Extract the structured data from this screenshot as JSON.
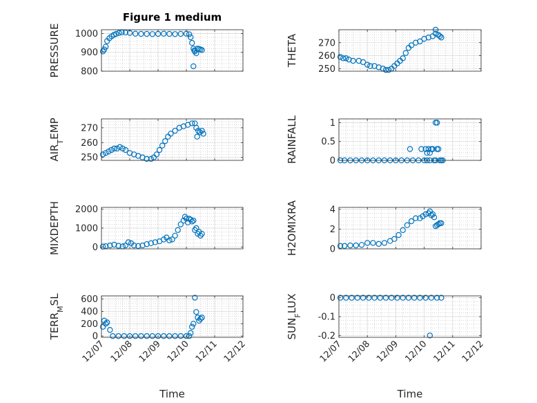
{
  "figure": {
    "title": "Figure 1 medium"
  },
  "colors": {
    "marker": "#0072BD",
    "axis": "#262626",
    "grid": "#b8b8b8"
  },
  "chart_data": [
    {
      "type": "scatter",
      "ylabel": "PRESSURE",
      "xlabel": "",
      "title": "Figure 1 medium",
      "xlim": [
        0,
        5
      ],
      "ylim": [
        800,
        1020
      ],
      "yticks": [
        800,
        900,
        1000
      ],
      "yticklabels": [
        "800",
        "900",
        "1000"
      ],
      "xticklabels_shown": false,
      "points": [
        [
          0.05,
          905
        ],
        [
          0.1,
          915
        ],
        [
          0.15,
          930
        ],
        [
          0.2,
          960
        ],
        [
          0.28,
          975
        ],
        [
          0.36,
          985
        ],
        [
          0.44,
          993
        ],
        [
          0.52,
          998
        ],
        [
          0.62,
          1003
        ],
        [
          0.72,
          1006
        ],
        [
          0.85,
          1005
        ],
        [
          1.0,
          1003
        ],
        [
          1.2,
          999
        ],
        [
          1.4,
          998
        ],
        [
          1.6,
          998
        ],
        [
          1.8,
          997
        ],
        [
          2.0,
          998
        ],
        [
          2.2,
          999
        ],
        [
          2.4,
          998
        ],
        [
          2.6,
          997
        ],
        [
          2.8,
          998
        ],
        [
          3.0,
          999
        ],
        [
          3.1,
          996
        ],
        [
          3.15,
          980
        ],
        [
          3.2,
          950
        ],
        [
          3.25,
          920
        ],
        [
          3.28,
          910
        ],
        [
          3.3,
          905
        ],
        [
          3.35,
          895
        ],
        [
          3.4,
          920
        ],
        [
          3.45,
          918
        ],
        [
          3.5,
          915
        ],
        [
          3.55,
          912
        ],
        [
          3.25,
          826
        ]
      ]
    },
    {
      "type": "scatter",
      "ylabel": "THETA",
      "xlabel": "",
      "xlim": [
        0,
        5
      ],
      "ylim": [
        248,
        280
      ],
      "yticks": [
        250,
        260,
        270
      ],
      "yticklabels": [
        "250",
        "260",
        "270"
      ],
      "xticklabels_shown": false,
      "points": [
        [
          0.05,
          259
        ],
        [
          0.15,
          258
        ],
        [
          0.25,
          258
        ],
        [
          0.35,
          257
        ],
        [
          0.5,
          256
        ],
        [
          0.7,
          256
        ],
        [
          0.85,
          255
        ],
        [
          1.0,
          253
        ],
        [
          1.1,
          252
        ],
        [
          1.25,
          252
        ],
        [
          1.4,
          251
        ],
        [
          1.55,
          250
        ],
        [
          1.65,
          249
        ],
        [
          1.75,
          249
        ],
        [
          1.85,
          250
        ],
        [
          1.95,
          252
        ],
        [
          2.05,
          254
        ],
        [
          2.15,
          256
        ],
        [
          2.25,
          258
        ],
        [
          2.35,
          262
        ],
        [
          2.45,
          266
        ],
        [
          2.55,
          268
        ],
        [
          2.7,
          270
        ],
        [
          2.85,
          271
        ],
        [
          3.0,
          273
        ],
        [
          3.15,
          274
        ],
        [
          3.3,
          275
        ],
        [
          3.4,
          277
        ],
        [
          3.5,
          276
        ],
        [
          3.55,
          275
        ],
        [
          3.6,
          274
        ],
        [
          3.4,
          280
        ]
      ]
    },
    {
      "type": "scatter",
      "ylabel": "AIR_TEMP",
      "xlabel": "",
      "xlim": [
        0,
        5
      ],
      "ylim": [
        248,
        276
      ],
      "yticks": [
        250,
        260,
        270
      ],
      "yticklabels": [
        "250",
        "260",
        "270"
      ],
      "xticklabels_shown": false,
      "points": [
        [
          0.05,
          252
        ],
        [
          0.15,
          253
        ],
        [
          0.25,
          254
        ],
        [
          0.35,
          255
        ],
        [
          0.45,
          256
        ],
        [
          0.55,
          256
        ],
        [
          0.65,
          257
        ],
        [
          0.75,
          256
        ],
        [
          0.85,
          255
        ],
        [
          1.0,
          253
        ],
        [
          1.15,
          252
        ],
        [
          1.3,
          251
        ],
        [
          1.45,
          250
        ],
        [
          1.6,
          249
        ],
        [
          1.75,
          249
        ],
        [
          1.85,
          250
        ],
        [
          1.95,
          252
        ],
        [
          2.05,
          255
        ],
        [
          2.15,
          258
        ],
        [
          2.25,
          261
        ],
        [
          2.35,
          264
        ],
        [
          2.45,
          266
        ],
        [
          2.6,
          268
        ],
        [
          2.75,
          270
        ],
        [
          2.9,
          271
        ],
        [
          3.05,
          272
        ],
        [
          3.2,
          273
        ],
        [
          3.3,
          273
        ],
        [
          3.35,
          270
        ],
        [
          3.38,
          264
        ],
        [
          3.42,
          268
        ],
        [
          3.48,
          267
        ],
        [
          3.55,
          268
        ],
        [
          3.6,
          266
        ]
      ]
    },
    {
      "type": "scatter",
      "ylabel": "RAINFALL",
      "xlabel": "",
      "xlim": [
        0,
        5
      ],
      "ylim": [
        0,
        1.1
      ],
      "yticks": [
        0,
        0.5,
        1
      ],
      "yticklabels": [
        "0",
        "0.5",
        "1"
      ],
      "xticklabels_shown": false,
      "points": [
        [
          0.05,
          0
        ],
        [
          0.2,
          0
        ],
        [
          0.4,
          0
        ],
        [
          0.6,
          0
        ],
        [
          0.8,
          0
        ],
        [
          1.0,
          0
        ],
        [
          1.2,
          0
        ],
        [
          1.4,
          0
        ],
        [
          1.6,
          0
        ],
        [
          1.8,
          0
        ],
        [
          2.0,
          0
        ],
        [
          2.2,
          0
        ],
        [
          2.4,
          0
        ],
        [
          2.6,
          0
        ],
        [
          2.8,
          0
        ],
        [
          2.9,
          0.3
        ],
        [
          3.05,
          0.3
        ],
        [
          3.1,
          0.2
        ],
        [
          3.15,
          0.3
        ],
        [
          3.2,
          0.2
        ],
        [
          3.25,
          0.3
        ],
        [
          3.3,
          0.3
        ],
        [
          3.35,
          0
        ],
        [
          3.4,
          0
        ],
        [
          3.45,
          0.3
        ],
        [
          3.5,
          0.3
        ],
        [
          3.55,
          0
        ],
        [
          3.6,
          0
        ],
        [
          3.65,
          0
        ],
        [
          3.4,
          1
        ],
        [
          3.45,
          1
        ],
        [
          2.5,
          0.3
        ],
        [
          3.0,
          0
        ],
        [
          3.1,
          0
        ],
        [
          3.2,
          0
        ]
      ]
    },
    {
      "type": "scatter",
      "ylabel": "MIXDEPTH",
      "xlabel": "",
      "xlim": [
        0,
        5
      ],
      "ylim": [
        -100,
        2100
      ],
      "yticks": [
        0,
        1000,
        2000
      ],
      "yticklabels": [
        "0",
        "1000",
        "2000"
      ],
      "xticklabels_shown": false,
      "points": [
        [
          0.05,
          20
        ],
        [
          0.15,
          40
        ],
        [
          0.3,
          80
        ],
        [
          0.45,
          120
        ],
        [
          0.6,
          60
        ],
        [
          0.75,
          30
        ],
        [
          0.85,
          80
        ],
        [
          0.95,
          250
        ],
        [
          1.05,
          200
        ],
        [
          1.15,
          80
        ],
        [
          1.3,
          50
        ],
        [
          1.45,
          80
        ],
        [
          1.6,
          150
        ],
        [
          1.75,
          200
        ],
        [
          1.9,
          250
        ],
        [
          2.05,
          300
        ],
        [
          2.2,
          400
        ],
        [
          2.3,
          500
        ],
        [
          2.4,
          350
        ],
        [
          2.5,
          400
        ],
        [
          2.6,
          600
        ],
        [
          2.7,
          900
        ],
        [
          2.8,
          1200
        ],
        [
          2.9,
          1400
        ],
        [
          2.95,
          1600
        ],
        [
          3.0,
          1500
        ],
        [
          3.05,
          1300
        ],
        [
          3.1,
          1500
        ],
        [
          3.15,
          1450
        ],
        [
          3.2,
          1350
        ],
        [
          3.25,
          1400
        ],
        [
          3.3,
          900
        ],
        [
          3.35,
          1000
        ],
        [
          3.4,
          700
        ],
        [
          3.45,
          800
        ],
        [
          3.5,
          600
        ],
        [
          3.55,
          700
        ]
      ]
    },
    {
      "type": "scatter",
      "ylabel": "H2OMIXRA",
      "xlabel": "",
      "xlim": [
        0,
        5
      ],
      "ylim": [
        0,
        4.2
      ],
      "yticks": [
        0,
        2,
        4
      ],
      "yticklabels": [
        "0",
        "2",
        "4"
      ],
      "xticklabels_shown": false,
      "points": [
        [
          0.05,
          0.3
        ],
        [
          0.2,
          0.3
        ],
        [
          0.4,
          0.35
        ],
        [
          0.6,
          0.35
        ],
        [
          0.8,
          0.4
        ],
        [
          1.0,
          0.6
        ],
        [
          1.2,
          0.6
        ],
        [
          1.4,
          0.5
        ],
        [
          1.6,
          0.6
        ],
        [
          1.8,
          0.8
        ],
        [
          1.95,
          1.0
        ],
        [
          2.1,
          1.4
        ],
        [
          2.25,
          1.9
        ],
        [
          2.4,
          2.4
        ],
        [
          2.55,
          2.8
        ],
        [
          2.7,
          3.1
        ],
        [
          2.85,
          3.1
        ],
        [
          2.95,
          3.3
        ],
        [
          3.05,
          3.5
        ],
        [
          3.15,
          3.6
        ],
        [
          3.2,
          3.8
        ],
        [
          3.25,
          3.4
        ],
        [
          3.3,
          3.5
        ],
        [
          3.35,
          3.2
        ],
        [
          3.4,
          2.3
        ],
        [
          3.45,
          2.4
        ],
        [
          3.5,
          2.5
        ],
        [
          3.55,
          2.6
        ],
        [
          3.6,
          2.6
        ]
      ]
    },
    {
      "type": "scatter",
      "ylabel": "TERR_MSL",
      "xlabel": "Time",
      "xlim": [
        0,
        5
      ],
      "ylim": [
        -20,
        650
      ],
      "yticks": [
        0,
        200,
        400,
        600
      ],
      "yticklabels": [
        "0",
        "200",
        "400",
        "600"
      ],
      "xticks": [
        0,
        1,
        2,
        3,
        4,
        5
      ],
      "xticklabels": [
        "12/07",
        "12/08",
        "12/09",
        "12/10",
        "12/11",
        "12/12"
      ],
      "points": [
        [
          0.05,
          150
        ],
        [
          0.1,
          250
        ],
        [
          0.15,
          200
        ],
        [
          0.2,
          220
        ],
        [
          0.3,
          100
        ],
        [
          0.4,
          0
        ],
        [
          0.6,
          0
        ],
        [
          0.8,
          0
        ],
        [
          1.0,
          0
        ],
        [
          1.2,
          0
        ],
        [
          1.4,
          0
        ],
        [
          1.6,
          0
        ],
        [
          1.8,
          0
        ],
        [
          2.0,
          0
        ],
        [
          2.2,
          0
        ],
        [
          2.4,
          0
        ],
        [
          2.6,
          0
        ],
        [
          2.8,
          0
        ],
        [
          3.0,
          0
        ],
        [
          3.1,
          0
        ],
        [
          3.15,
          50
        ],
        [
          3.2,
          150
        ],
        [
          3.25,
          200
        ],
        [
          3.3,
          620
        ],
        [
          3.35,
          390
        ],
        [
          3.4,
          300
        ],
        [
          3.45,
          250
        ],
        [
          3.5,
          280
        ],
        [
          3.55,
          300
        ]
      ]
    },
    {
      "type": "scatter",
      "ylabel": "SUN_FLUX",
      "xlabel": "Time",
      "xlim": [
        0,
        5
      ],
      "ylim": [
        -0.21,
        0.01
      ],
      "yticks": [
        -0.2,
        -0.1,
        0
      ],
      "yticklabels": [
        "-0.2",
        "-0.1",
        "0"
      ],
      "xticks": [
        0,
        1,
        2,
        3,
        4,
        5
      ],
      "xticklabels": [
        "12/07",
        "12/08",
        "12/09",
        "12/10",
        "12/11",
        "12/12"
      ],
      "points": [
        [
          0.05,
          0
        ],
        [
          0.25,
          0
        ],
        [
          0.45,
          0
        ],
        [
          0.65,
          0
        ],
        [
          0.85,
          0
        ],
        [
          1.05,
          0
        ],
        [
          1.25,
          0
        ],
        [
          1.45,
          0
        ],
        [
          1.65,
          0
        ],
        [
          1.85,
          0
        ],
        [
          2.05,
          0
        ],
        [
          2.25,
          0
        ],
        [
          2.45,
          0
        ],
        [
          2.65,
          0
        ],
        [
          2.85,
          0
        ],
        [
          3.05,
          0
        ],
        [
          3.25,
          0
        ],
        [
          3.45,
          0
        ],
        [
          3.6,
          0
        ],
        [
          3.2,
          -0.2
        ]
      ]
    }
  ]
}
